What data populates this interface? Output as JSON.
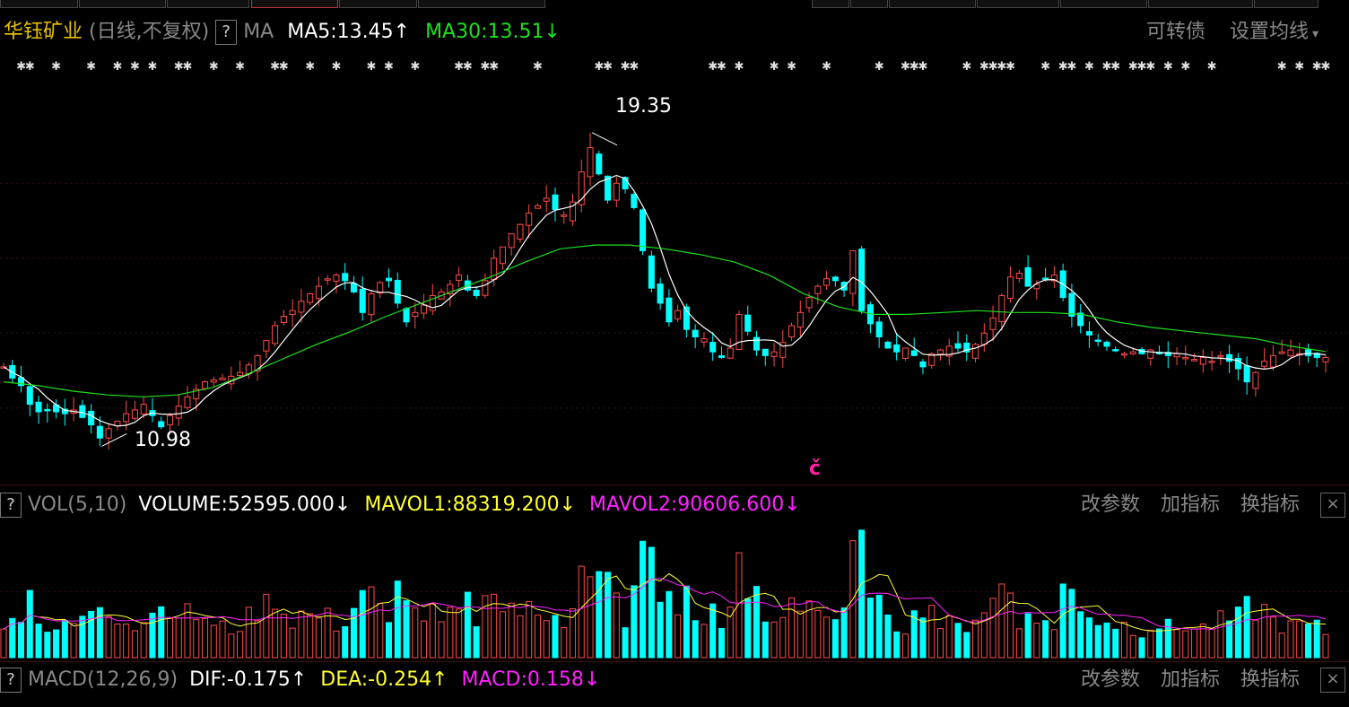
{
  "main_header": {
    "name": "华钰矿业",
    "mode": "(日线,不复权)",
    "help": "?",
    "ma_label": "MA",
    "ma5": "MA5:13.45",
    "ma5_arrow": "↑",
    "ma30": "MA30:13.51",
    "ma30_arrow": "↓",
    "link_convertible": "可转债",
    "link_set_ma": "设置均线",
    "link_set_ma_caret": "▾"
  },
  "vol_header": {
    "help": "?",
    "label": "VOL(5,10)",
    "volume": "VOLUME:52595.000",
    "volume_arrow": "↓",
    "mavol1": "MAVOL1:88319.200",
    "mavol1_arrow": "↓",
    "mavol2": "MAVOL2:90606.600",
    "mavol2_arrow": "↓",
    "link_params": "改参数",
    "link_add": "加指标",
    "link_switch": "换指标",
    "close": "×"
  },
  "macd_header": {
    "help": "?",
    "label": "MACD(12,26,9)",
    "dif": "DIF:-0.175",
    "dif_arrow": "↑",
    "dea": "DEA:-0.254",
    "dea_arrow": "↑",
    "macd": "MACD:0.158",
    "macd_arrow": "↓",
    "link_params": "改参数",
    "link_add": "加指标",
    "link_switch": "换指标",
    "close": "×"
  },
  "annotations": {
    "high_label": "19.35",
    "low_label": "10.98",
    "marker": "č"
  },
  "colors": {
    "up": "#ff4a4a",
    "down": "#00ffff",
    "ma5": "#ffffff",
    "ma30": "#1ee01e",
    "mavol1": "#ffff33",
    "mavol2": "#ff22ff",
    "marker": "#ff1fa0"
  },
  "chart_data": [
    {
      "type": "candlestick",
      "title": "华钰矿业 (日线,不复权)",
      "ylim": [
        10.2,
        20.4
      ],
      "grid": true,
      "high": 19.35,
      "low": 10.98,
      "series": [
        {
          "name": "MA5",
          "last": 13.45
        },
        {
          "name": "MA30",
          "last": 13.51
        }
      ],
      "closes": [
        13.1,
        12.8,
        12.6,
        12.1,
        11.9,
        11.95,
        11.9,
        11.85,
        11.95,
        11.75,
        11.55,
        11.2,
        11.45,
        11.65,
        11.85,
        11.95,
        12.1,
        11.8,
        11.5,
        11.8,
        12.05,
        12.3,
        12.5,
        12.7,
        12.75,
        12.8,
        12.85,
        12.95,
        13.15,
        13.4,
        13.8,
        14.2,
        14.45,
        14.6,
        14.85,
        15.05,
        15.25,
        15.45,
        15.55,
        15.4,
        15.1,
        14.55,
        15.05,
        15.35,
        15.4,
        14.8,
        14.3,
        14.55,
        14.75,
        15.0,
        15.1,
        15.3,
        15.55,
        15.15,
        15.0,
        15.4,
        16.0,
        16.3,
        16.65,
        16.9,
        17.2,
        17.4,
        17.6,
        17.3,
        17.15,
        17.5,
        18.3,
        18.95,
        18.25,
        17.55,
        18.0,
        17.85,
        17.35,
        16.2,
        15.2,
        14.8,
        14.3,
        14.6,
        14.1,
        13.9,
        13.85,
        13.5,
        13.35,
        13.6,
        14.5,
        14.05,
        13.55,
        13.4,
        13.5,
        13.75,
        14.2,
        14.55,
        14.95,
        15.25,
        15.45,
        15.4,
        15.15,
        16.2,
        14.6,
        14.25,
        13.9,
        13.6,
        13.5,
        13.6,
        13.4,
        13.1,
        13.45,
        13.55,
        13.65,
        13.6,
        13.5,
        13.7,
        14.0,
        14.4,
        15.0,
        15.5,
        15.6,
        15.25,
        15.3,
        15.45,
        15.55,
        14.95,
        14.45,
        14.2,
        13.95,
        13.8,
        13.65,
        13.55,
        13.45,
        13.5,
        13.45,
        13.55,
        13.45,
        13.4,
        13.45,
        13.35,
        13.3,
        13.35,
        13.25,
        13.4,
        13.25,
        13.05,
        12.7,
        12.95,
        13.25,
        13.4,
        13.5,
        13.55,
        13.45,
        13.4,
        13.35,
        13.35
      ],
      "ma30_curve": [
        12.7,
        12.6,
        12.45,
        12.35,
        12.3,
        12.35,
        12.55,
        12.9,
        13.3,
        13.7,
        14.05,
        14.45,
        14.8,
        15.15,
        15.5,
        15.9,
        16.25,
        16.35,
        16.35,
        16.25,
        16.1,
        15.9,
        15.55,
        15.05,
        14.7,
        14.5,
        14.5,
        14.55,
        14.6,
        14.55,
        14.55,
        14.5,
        14.3,
        14.15,
        14.05,
        13.95,
        13.85,
        13.65,
        13.51
      ]
    },
    {
      "type": "bar",
      "title": "VOL(5,10)",
      "series": [
        {
          "name": "VOLUME",
          "last": 52595.0
        },
        {
          "name": "MAVOL1",
          "last": 88319.2
        },
        {
          "name": "MAVOL2",
          "last": 90606.6
        }
      ],
      "ylim": [
        0,
        300000
      ]
    },
    {
      "type": "line",
      "title": "MACD(12,26,9)",
      "series": [
        {
          "name": "DIF",
          "last": -0.175
        },
        {
          "name": "DEA",
          "last": -0.254
        },
        {
          "name": "MACD",
          "last": 0.158
        }
      ]
    }
  ]
}
